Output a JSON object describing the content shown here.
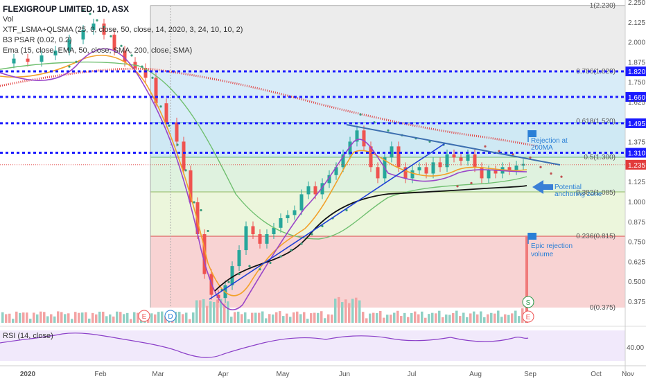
{
  "legend": {
    "symbol": "FLEXIGROUP LIMITED, 1D, ASX",
    "vol": "Vol",
    "ind1": "XTF_LSMA+QLSMA (25, 0, close, 50, close, 14, 2020, 3, 24, 10, 10, 2)",
    "ind2": "B3 PSAR (0.02, 0.2)",
    "ind3": "Ema (15, close, EMA, 50, close, SMA, 200, close, SMA)",
    "rsi": "RSI (14, close)"
  },
  "colors": {
    "line_levels": "#1a1aff",
    "trendline": "#1f3fd6",
    "resistance": "#3d6fb0",
    "ma200": "#e23b3b",
    "fib_red": "#f8d0d0",
    "fib_green": "#e8f5d8",
    "fib_blue": "#d8ecf8",
    "annotation": "#2a7fd6"
  },
  "chart_data": {
    "type": "candlestick",
    "title": "FLEXIGROUP LIMITED, 1D, ASX",
    "ylim": [
      0.34,
      2.25
    ],
    "price_ticks": [
      "2.250",
      "2.125",
      "2.000",
      "1.875",
      "1.750",
      "1.625",
      "1.375",
      "1.125",
      "1.000",
      "0.875",
      "0.750",
      "0.625",
      "0.500",
      "0.375"
    ],
    "x_labels": [
      "2020",
      "Feb",
      "Mar",
      "Apr",
      "May",
      "Jun",
      "Jul",
      "Aug",
      "Sep",
      "Oct",
      "Nov"
    ],
    "horizontal_levels": [
      {
        "value": 1.82,
        "label": "1.820"
      },
      {
        "value": 1.66,
        "label": "1.660"
      },
      {
        "value": 1.495,
        "label": "1.495"
      },
      {
        "value": 1.31,
        "label": "1.310"
      }
    ],
    "last_price": {
      "value": 1.235,
      "label": "1.235"
    },
    "fib_levels": [
      {
        "label": "1(2.230)",
        "value": 2.23
      },
      {
        "label": "0.786(1.820)",
        "value": 1.82
      },
      {
        "label": "0.618(1.520)",
        "value": 1.52
      },
      {
        "label": "0.5(1.300)",
        "value": 1.3
      },
      {
        "label": "0.382(1.085)",
        "value": 1.085
      },
      {
        "label": "0.236(0.815)",
        "value": 0.815
      },
      {
        "label": "0(0.375)",
        "value": 0.375
      }
    ],
    "annotations": [
      {
        "text": [
          "Rejection at",
          "200MA"
        ]
      },
      {
        "text": [
          "Potential",
          "anchoring zone"
        ]
      },
      {
        "text": [
          "Epic rejection",
          "volume"
        ]
      }
    ],
    "markers": [
      "E",
      "D",
      "S",
      "E"
    ],
    "rsi_ticks": [
      "40.00"
    ]
  }
}
